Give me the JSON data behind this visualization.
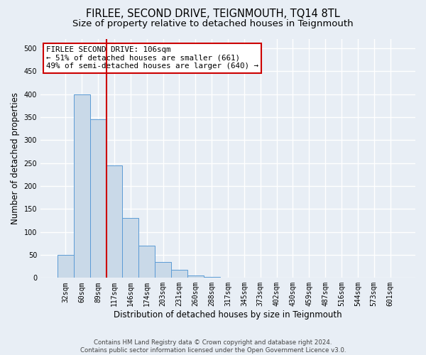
{
  "title": "FIRLEE, SECOND DRIVE, TEIGNMOUTH, TQ14 8TL",
  "subtitle": "Size of property relative to detached houses in Teignmouth",
  "xlabel": "Distribution of detached houses by size in Teignmouth",
  "ylabel": "Number of detached properties",
  "bar_labels": [
    "32sqm",
    "60sqm",
    "89sqm",
    "117sqm",
    "146sqm",
    "174sqm",
    "203sqm",
    "231sqm",
    "260sqm",
    "288sqm",
    "317sqm",
    "345sqm",
    "373sqm",
    "402sqm",
    "430sqm",
    "459sqm",
    "487sqm",
    "516sqm",
    "544sqm",
    "573sqm",
    "601sqm"
  ],
  "bar_values": [
    50,
    400,
    345,
    245,
    130,
    70,
    35,
    18,
    5,
    2,
    1,
    0.5,
    0.3,
    0.2,
    0.1,
    0.1,
    0,
    0,
    0,
    0,
    0
  ],
  "bar_color": "#c9d9e8",
  "bar_edge_color": "#5b9bd5",
  "annotation_title": "FIRLEE SECOND DRIVE: 106sqm",
  "annotation_line1": "← 51% of detached houses are smaller (661)",
  "annotation_line2": "49% of semi-detached houses are larger (640) →",
  "annotation_box_color": "#ffffff",
  "annotation_box_edge": "#cc0000",
  "vline_color": "#cc0000",
  "vline_x": 2.5,
  "ylim": [
    0,
    520
  ],
  "yticks": [
    0,
    50,
    100,
    150,
    200,
    250,
    300,
    350,
    400,
    450,
    500
  ],
  "footer1": "Contains HM Land Registry data © Crown copyright and database right 2024.",
  "footer2": "Contains public sector information licensed under the Open Government Licence v3.0.",
  "bg_color": "#e8eef5",
  "plot_bg_color": "#e8eef5",
  "grid_color": "#ffffff",
  "title_fontsize": 10.5,
  "subtitle_fontsize": 9.5,
  "tick_fontsize": 7,
  "ylabel_fontsize": 8.5,
  "xlabel_fontsize": 8.5,
  "annot_fontsize": 7.8,
  "footer_fontsize": 6.2
}
